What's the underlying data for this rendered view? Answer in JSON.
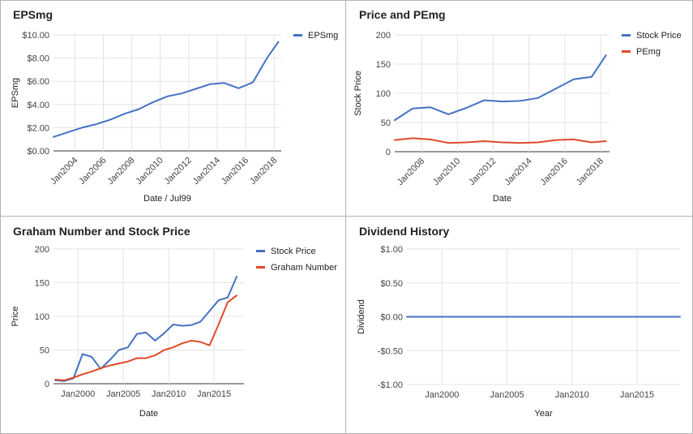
{
  "colors": {
    "blue": "#4472c4",
    "red": "#e04a2a"
  },
  "chart_data": [
    {
      "type": "line",
      "title": "EPSmg",
      "xlabel": "Date / Jul99",
      "ylabel": "EPSmg",
      "xlim": [
        2002.5,
        2018.5
      ],
      "ylim": [
        0,
        10
      ],
      "yticks": [
        0,
        2,
        4,
        6,
        8,
        10
      ],
      "ytick_labels": [
        "$0.00",
        "$2.00",
        "$4.00",
        "$6.00",
        "$8.00",
        "$10.00"
      ],
      "xticks": [
        2004,
        2006,
        2008,
        2010,
        2012,
        2014,
        2016,
        2018
      ],
      "xtick_labels": [
        "Jan2004",
        "Jan2006",
        "Jan2008",
        "Jan2010",
        "Jan2012",
        "Jan2014",
        "Jan2016",
        "Jan2018"
      ],
      "legend_position": "top-right",
      "series": [
        {
          "name": "EPSmg",
          "color": "#4472c4",
          "x": [
            2002.5,
            2003.5,
            2004.5,
            2005.5,
            2006.5,
            2007.5,
            2008.5,
            2009.5,
            2010.5,
            2011.5,
            2012.5,
            2013.5,
            2014.5,
            2015.5,
            2016.5,
            2017.5,
            2018.3
          ],
          "y": [
            1.2,
            1.6,
            2.0,
            2.3,
            2.7,
            3.2,
            3.6,
            4.2,
            4.7,
            4.95,
            5.35,
            5.75,
            5.85,
            5.4,
            5.9,
            8.0,
            9.4
          ]
        }
      ]
    },
    {
      "type": "line",
      "title": "Price and PEmg",
      "xlabel": "Date",
      "ylabel": "Stock Price",
      "xlim": [
        2006.5,
        2018.5
      ],
      "ylim": [
        0,
        200
      ],
      "yticks": [
        0,
        50,
        100,
        150,
        200
      ],
      "ytick_labels": [
        "0",
        "50",
        "100",
        "150",
        "200"
      ],
      "xticks": [
        2008,
        2010,
        2012,
        2014,
        2016,
        2018
      ],
      "xtick_labels": [
        "Jan2008",
        "Jan2010",
        "Jan2012",
        "Jan2014",
        "Jan2016",
        "Jan2018"
      ],
      "legend_position": "top-right",
      "series": [
        {
          "name": "Stock Price",
          "color": "#4472c4",
          "x": [
            2006.5,
            2007.5,
            2008.5,
            2009.5,
            2010.5,
            2011.5,
            2012.5,
            2013.5,
            2014.5,
            2015.5,
            2016.5,
            2017.5,
            2018.3
          ],
          "y": [
            54,
            74,
            76,
            64,
            75,
            88,
            86,
            87,
            92,
            108,
            124,
            128,
            165
          ]
        },
        {
          "name": "PEmg",
          "color": "#e04a2a",
          "x": [
            2006.5,
            2007.5,
            2008.5,
            2009.5,
            2010.5,
            2011.5,
            2012.5,
            2013.5,
            2014.5,
            2015.5,
            2016.5,
            2017.5,
            2018.3
          ],
          "y": [
            20,
            23,
            21,
            15,
            16,
            18,
            16,
            15,
            16,
            20,
            21,
            16,
            18
          ]
        }
      ]
    },
    {
      "type": "line",
      "title": "Graham Number and Stock Price",
      "xlabel": "Date",
      "ylabel": "Price",
      "xlim": [
        1997.3,
        2018.3
      ],
      "ylim": [
        0,
        200
      ],
      "yticks": [
        0,
        50,
        100,
        150,
        200
      ],
      "ytick_labels": [
        "0",
        "50",
        "100",
        "150",
        "200"
      ],
      "xticks": [
        2000,
        2005,
        2010,
        2015
      ],
      "xtick_labels": [
        "Jan2000",
        "Jan2005",
        "Jan2010",
        "Jan2015"
      ],
      "legend_position": "top-right",
      "series": [
        {
          "name": "Stock Price",
          "color": "#4472c4",
          "x": [
            1997.5,
            1998.5,
            1999.5,
            2000.5,
            2001.5,
            2002.5,
            2003.5,
            2004.5,
            2005.5,
            2006.5,
            2007.5,
            2008.5,
            2009.5,
            2010.5,
            2011.5,
            2012.5,
            2013.5,
            2014.5,
            2015.5,
            2016.5,
            2017.5
          ],
          "y": [
            5,
            4,
            8,
            44,
            40,
            22,
            35,
            50,
            54,
            74,
            76,
            64,
            75,
            88,
            86,
            87,
            92,
            108,
            124,
            128,
            159
          ]
        },
        {
          "name": "Graham Number",
          "color": "#e04a2a",
          "x": [
            1997.5,
            1998.5,
            1999.5,
            2000.5,
            2001.5,
            2002.5,
            2003.5,
            2004.5,
            2005.5,
            2006.5,
            2007.5,
            2008.5,
            2009.5,
            2010.5,
            2011.5,
            2012.5,
            2013.5,
            2014.5,
            2015.5,
            2016.5,
            2017.5
          ],
          "y": [
            6,
            5,
            9,
            14,
            18,
            23,
            27,
            30,
            33,
            38,
            38,
            42,
            50,
            54,
            60,
            64,
            62,
            57,
            88,
            121,
            131
          ]
        }
      ]
    },
    {
      "type": "line",
      "title": "Dividend History",
      "xlabel": "Year",
      "ylabel": "Dividend",
      "xlim": [
        1997.3,
        2018.3
      ],
      "ylim": [
        -1,
        1
      ],
      "yticks": [
        -1,
        -0.5,
        0,
        0.5,
        1
      ],
      "ytick_labels": [
        "-$1.00",
        "-$0.50",
        "$0.00",
        "$0.50",
        "$1.00"
      ],
      "xticks": [
        2000,
        2005,
        2010,
        2015
      ],
      "xtick_labels": [
        "Jan2000",
        "Jan2005",
        "Jan2010",
        "Jan2015"
      ],
      "legend_position": "none",
      "series": [
        {
          "color": "#4472c4",
          "x": [
            1997.3,
            2018.3
          ],
          "y": [
            0,
            0
          ]
        }
      ]
    }
  ]
}
